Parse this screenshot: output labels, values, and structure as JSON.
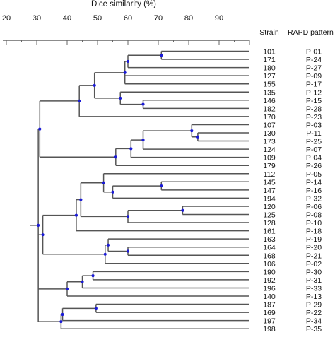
{
  "title": "Dice similarity (%)",
  "axis": {
    "ticks": [
      "20",
      "30",
      "40",
      "50",
      "60",
      "70",
      "80",
      "90"
    ],
    "min": 20,
    "max": 100
  },
  "columns": {
    "strain": "Strain",
    "pattern": "RAPD pattern"
  },
  "colors": {
    "line": "#555555",
    "node": "#1b1bd6",
    "text": "#111111"
  },
  "leaves": [
    {
      "strain": "101",
      "pattern": "P-01"
    },
    {
      "strain": "171",
      "pattern": "P-24"
    },
    {
      "strain": "180",
      "pattern": "P-27"
    },
    {
      "strain": "127",
      "pattern": "P-09"
    },
    {
      "strain": "155",
      "pattern": "P-17"
    },
    {
      "strain": "135",
      "pattern": "P-12"
    },
    {
      "strain": "146",
      "pattern": "P-15"
    },
    {
      "strain": "182",
      "pattern": "P-28"
    },
    {
      "strain": "170",
      "pattern": "P-23"
    },
    {
      "strain": "107",
      "pattern": "P-03"
    },
    {
      "strain": "130",
      "pattern": "P-11"
    },
    {
      "strain": "173",
      "pattern": "P-25"
    },
    {
      "strain": "124",
      "pattern": "P-07"
    },
    {
      "strain": "109",
      "pattern": "P-04"
    },
    {
      "strain": "179",
      "pattern": "P-26"
    },
    {
      "strain": "112",
      "pattern": "P-05"
    },
    {
      "strain": "145",
      "pattern": "P-14"
    },
    {
      "strain": "147",
      "pattern": "P-16"
    },
    {
      "strain": "194",
      "pattern": "P-32"
    },
    {
      "strain": "120",
      "pattern": "P-06"
    },
    {
      "strain": "125",
      "pattern": "P-08"
    },
    {
      "strain": "128",
      "pattern": "P-10"
    },
    {
      "strain": "161",
      "pattern": "P-18"
    },
    {
      "strain": "163",
      "pattern": "P-19"
    },
    {
      "strain": "164",
      "pattern": "P-20"
    },
    {
      "strain": "168",
      "pattern": "P-21"
    },
    {
      "strain": "106",
      "pattern": "P-02"
    },
    {
      "strain": "190",
      "pattern": "P-30"
    },
    {
      "strain": "192",
      "pattern": "P-31"
    },
    {
      "strain": "196",
      "pattern": "P-33"
    },
    {
      "strain": "140",
      "pattern": "P-13"
    },
    {
      "strain": "187",
      "pattern": "P-29"
    },
    {
      "strain": "169",
      "pattern": "P-22"
    },
    {
      "strain": "197",
      "pattern": "P-34"
    },
    {
      "strain": "198",
      "pattern": "P-35"
    }
  ],
  "tree": {
    "s": 30.5,
    "c": [
      {
        "s": 31,
        "c": [
          {
            "s": 44,
            "c": [
              {
                "s": 49,
                "c": [
                  {
                    "s": 59,
                    "c": [
                      {
                        "s": 60,
                        "c": [
                          {
                            "s": 71,
                            "c": [
                              {
                                "l": 0
                              },
                              {
                                "l": 1
                              }
                            ]
                          },
                          {
                            "l": 2
                          }
                        ]
                      },
                      {
                        "l": 3
                      },
                      {
                        "l": 4
                      }
                    ]
                  },
                  {
                    "s": 57.5,
                    "c": [
                      {
                        "l": 5
                      },
                      {
                        "s": 65,
                        "c": [
                          {
                            "l": 6
                          },
                          {
                            "l": 7
                          }
                        ]
                      }
                    ]
                  }
                ]
              },
              {
                "l": 8
              }
            ]
          },
          {
            "s": 56,
            "c": [
              {
                "s": 61,
                "c": [
                  {
                    "s": 65,
                    "c": [
                      {
                        "s": 81,
                        "c": [
                          {
                            "l": 9
                          },
                          {
                            "s": 83,
                            "c": [
                              {
                                "l": 10
                              },
                              {
                                "l": 11
                              }
                            ]
                          }
                        ]
                      },
                      {
                        "l": 12
                      }
                    ]
                  },
                  {
                    "l": 13
                  }
                ]
              },
              {
                "l": 14
              }
            ]
          }
        ]
      },
      {
        "s": 32,
        "c": [
          {
            "s": 43,
            "c": [
              {
                "s": 44.5,
                "c": [
                  {
                    "s": 52,
                    "c": [
                      {
                        "l": 15
                      },
                      {
                        "s": 55,
                        "c": [
                          {
                            "s": 71,
                            "c": [
                              {
                                "l": 16
                              },
                              {
                                "l": 17
                              }
                            ]
                          },
                          {
                            "l": 18
                          }
                        ]
                      }
                    ]
                  },
                  {
                    "s": 60,
                    "c": [
                      {
                        "s": 78,
                        "c": [
                          {
                            "l": 19
                          },
                          {
                            "l": 20
                          }
                        ]
                      },
                      {
                        "l": 21
                      }
                    ]
                  }
                ]
              },
              {
                "l": 22
              }
            ]
          },
          {
            "s": 52.5,
            "c": [
              {
                "s": 53.5,
                "c": [
                  {
                    "l": 23
                  },
                  {
                    "s": 60,
                    "c": [
                      {
                        "l": 24
                      },
                      {
                        "l": 25
                      }
                    ]
                  }
                ]
              },
              {
                "l": 26
              }
            ]
          }
        ]
      },
      {
        "s": 40,
        "c": [
          {
            "s": 45,
            "c": [
              {
                "s": 48.5,
                "c": [
                  {
                    "l": 27
                  },
                  {
                    "l": 28
                  }
                ]
              },
              {
                "l": 29
              }
            ]
          },
          {
            "l": 30
          }
        ]
      },
      {
        "s": 38,
        "c": [
          {
            "s": 38.5,
            "c": [
              {
                "s": 49.5,
                "c": [
                  {
                    "l": 31
                  },
                  {
                    "l": 32
                  }
                ]
              },
              {
                "l": 33
              }
            ]
          },
          {
            "l": 34
          }
        ]
      }
    ]
  }
}
